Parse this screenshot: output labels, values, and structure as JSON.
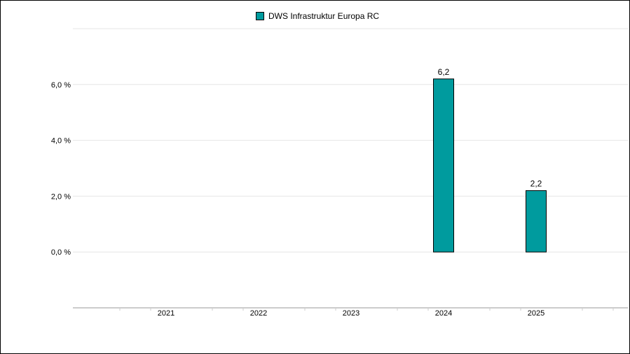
{
  "chart_data": {
    "type": "bar",
    "categories": [
      "2021",
      "2022",
      "2023",
      "2024",
      "2025"
    ],
    "series": [
      {
        "name": "DWS Infrastruktur Europa RC",
        "color": "#009b9e",
        "values": [
          null,
          null,
          null,
          6.2,
          2.2
        ],
        "labels": [
          "",
          "",
          "",
          "6,2",
          "2,2"
        ]
      }
    ],
    "yticks": [
      0,
      2,
      4,
      6
    ],
    "ytick_labels": [
      "0,0 %",
      "2,0 %",
      "4,0 %",
      "6,0 %"
    ],
    "ylim": [
      -2,
      8
    ],
    "grid": true,
    "legend_position": "top-center"
  }
}
